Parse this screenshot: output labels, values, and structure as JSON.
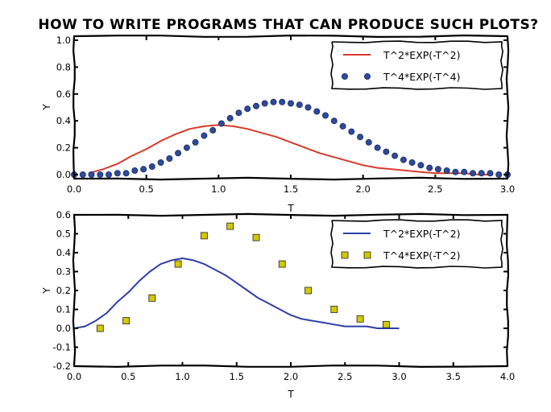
{
  "chart_data": [
    {
      "type": "line",
      "title": "HOW TO WRITE PROGRAMS THAT CAN PRODUCE SUCH PLOTS?",
      "xlabel": "T",
      "ylabel": "Y",
      "xlim": [
        0.0,
        3.0
      ],
      "ylim": [
        -0.03,
        1.03
      ],
      "xticks": [
        "0.0",
        "0.5",
        "1.0",
        "1.5",
        "2.0",
        "2.5",
        "3.0"
      ],
      "yticks": [
        "0.0",
        "0.2",
        "0.4",
        "0.6",
        "0.8",
        "1.0"
      ],
      "legend_position": "top-right",
      "grid": false,
      "series": [
        {
          "name": "T^2*EXP(-T^2)",
          "style": "line",
          "color": "#d93a2b",
          "x": [
            0.1,
            0.2,
            0.3,
            0.4,
            0.5,
            0.6,
            0.7,
            0.8,
            0.9,
            1.0,
            1.1,
            1.2,
            1.3,
            1.4,
            1.5,
            1.6,
            1.7,
            1.8,
            1.9,
            2.0,
            2.1,
            2.2,
            2.3,
            2.4,
            2.5,
            2.6,
            2.7,
            2.8,
            2.9
          ],
          "values": [
            0.01,
            0.04,
            0.08,
            0.14,
            0.19,
            0.25,
            0.3,
            0.34,
            0.36,
            0.37,
            0.36,
            0.34,
            0.31,
            0.28,
            0.24,
            0.2,
            0.16,
            0.13,
            0.1,
            0.07,
            0.05,
            0.04,
            0.03,
            0.02,
            0.01,
            0.01,
            0.01,
            0.0,
            0.0
          ]
        },
        {
          "name": "T^4*EXP(-T^4)",
          "style": "circle-markers",
          "color": "#2e4a9a",
          "x": [
            0.0,
            0.06,
            0.12,
            0.18,
            0.24,
            0.3,
            0.36,
            0.42,
            0.48,
            0.54,
            0.6,
            0.66,
            0.72,
            0.78,
            0.84,
            0.9,
            0.96,
            1.02,
            1.08,
            1.14,
            1.2,
            1.26,
            1.32,
            1.38,
            1.44,
            1.5,
            1.56,
            1.62,
            1.68,
            1.74,
            1.8,
            1.86,
            1.92,
            1.98,
            2.04,
            2.1,
            2.16,
            2.22,
            2.28,
            2.34,
            2.4,
            2.46,
            2.52,
            2.58,
            2.64,
            2.7,
            2.76,
            2.82,
            2.88,
            2.94,
            3.0
          ],
          "values": [
            0.0,
            0.0,
            0.0,
            0.0,
            0.0,
            0.01,
            0.01,
            0.03,
            0.04,
            0.06,
            0.09,
            0.12,
            0.16,
            0.2,
            0.24,
            0.29,
            0.33,
            0.38,
            0.42,
            0.46,
            0.49,
            0.51,
            0.53,
            0.54,
            0.54,
            0.53,
            0.52,
            0.5,
            0.47,
            0.44,
            0.4,
            0.36,
            0.32,
            0.28,
            0.24,
            0.2,
            0.17,
            0.14,
            0.11,
            0.09,
            0.07,
            0.05,
            0.04,
            0.03,
            0.02,
            0.02,
            0.01,
            0.01,
            0.01,
            0.0,
            0.0
          ]
        }
      ]
    },
    {
      "type": "line",
      "xlabel": "T",
      "ylabel": "Y",
      "xlim": [
        0.0,
        4.0
      ],
      "ylim": [
        -0.2,
        0.6
      ],
      "xticks": [
        "0.0",
        "0.5",
        "1.0",
        "1.5",
        "2.0",
        "2.5",
        "3.0",
        "3.5",
        "4.0"
      ],
      "yticks": [
        "-0.2",
        "-0.1",
        "0.0",
        "0.1",
        "0.2",
        "0.3",
        "0.4",
        "0.5",
        "0.6"
      ],
      "legend_position": "top-right",
      "grid": false,
      "series": [
        {
          "name": "T^2*EXP(-T^2)",
          "style": "line",
          "color": "#2e3fa8",
          "x": [
            0.0,
            0.1,
            0.2,
            0.3,
            0.4,
            0.5,
            0.6,
            0.7,
            0.8,
            0.9,
            1.0,
            1.1,
            1.2,
            1.3,
            1.4,
            1.5,
            1.6,
            1.7,
            1.8,
            1.9,
            2.0,
            2.1,
            2.2,
            2.3,
            2.4,
            2.5,
            2.6,
            2.7,
            2.8,
            2.9,
            3.0
          ],
          "values": [
            0.0,
            0.01,
            0.04,
            0.08,
            0.14,
            0.19,
            0.25,
            0.3,
            0.34,
            0.36,
            0.37,
            0.36,
            0.34,
            0.31,
            0.28,
            0.24,
            0.2,
            0.16,
            0.13,
            0.1,
            0.07,
            0.05,
            0.04,
            0.03,
            0.02,
            0.01,
            0.01,
            0.01,
            0.0,
            0.0,
            0.0
          ]
        },
        {
          "name": "T^4*EXP(-T^2)",
          "style": "square-markers",
          "color": "#d4c800",
          "x": [
            0.24,
            0.48,
            0.72,
            0.96,
            1.2,
            1.44,
            1.68,
            1.92,
            2.16,
            2.4,
            2.64,
            2.88
          ],
          "values": [
            0.0,
            0.04,
            0.16,
            0.34,
            0.49,
            0.54,
            0.48,
            0.34,
            0.2,
            0.1,
            0.05,
            0.02
          ]
        }
      ]
    }
  ]
}
